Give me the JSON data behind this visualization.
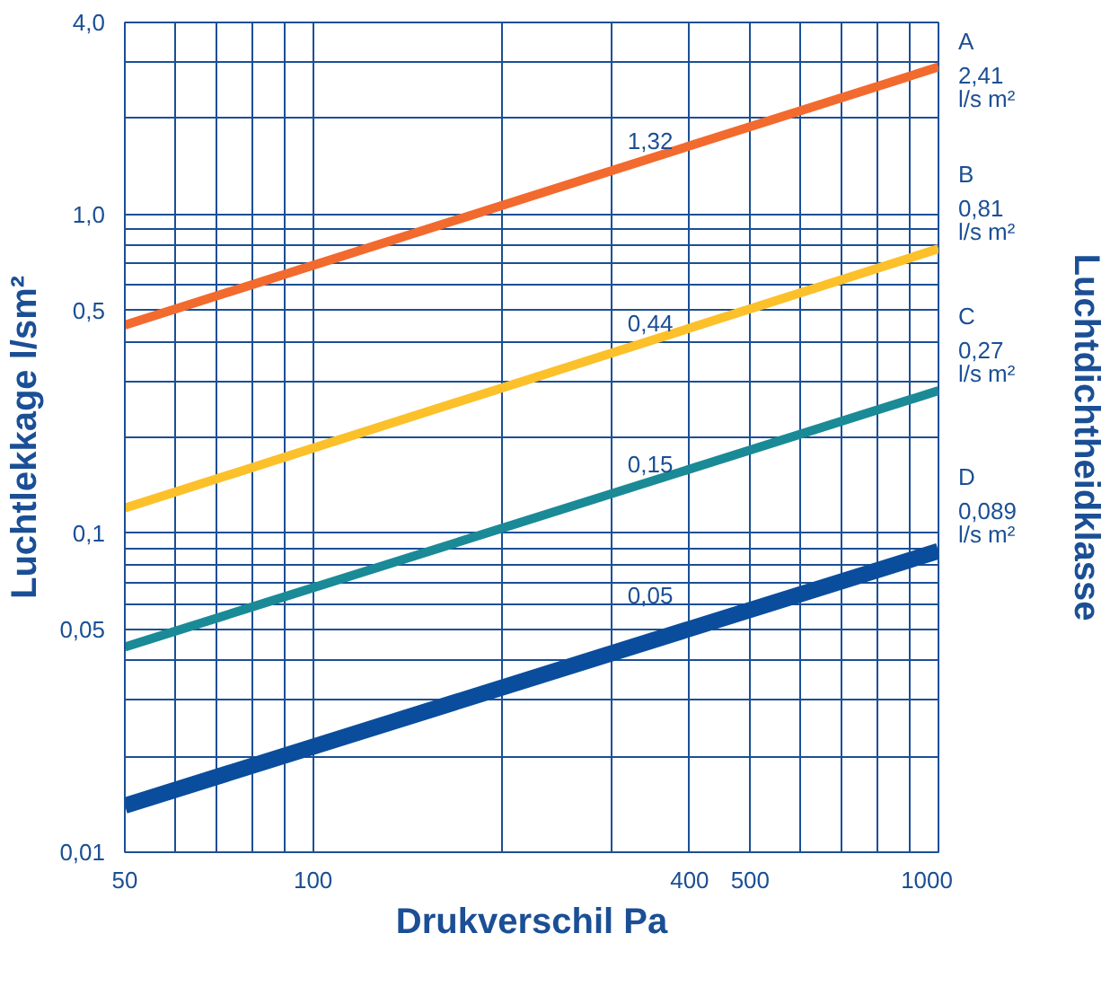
{
  "chart_data": {
    "type": "line",
    "xlabel": "Drukverschil Pa",
    "ylabel": "Luchtlekkage l/sm²",
    "y2label": "Luchtdichtheidklasse",
    "x": [
      50,
      1000
    ],
    "log": "xy",
    "grid": true,
    "xlim": [
      50,
      1000
    ],
    "xticks": [
      50,
      {
        "value": 60,
        "label": null
      },
      {
        "value": 70,
        "label": null
      },
      {
        "value": 80,
        "label": null
      },
      {
        "value": 90,
        "label": null
      },
      100,
      {
        "value": 200,
        "label": null
      },
      {
        "value": 300,
        "label": null
      },
      400,
      500,
      {
        "value": 600,
        "label": null
      },
      {
        "value": 700,
        "label": null
      },
      {
        "value": 800,
        "label": null
      },
      {
        "value": 900,
        "label": null
      },
      1000
    ],
    "ylim": [
      0.01,
      4
    ],
    "yticks": [
      {
        "value": 0.01,
        "label": "0,01"
      },
      {
        "value": 0.02,
        "label": null
      },
      {
        "value": 0.03,
        "label": null
      },
      {
        "value": 0.04,
        "label": null
      },
      {
        "value": 0.05,
        "label": "0,05"
      },
      {
        "value": 0.06,
        "label": null
      },
      {
        "value": 0.07,
        "label": null
      },
      {
        "value": 0.08,
        "label": null
      },
      {
        "value": 0.09,
        "label": null
      },
      {
        "value": 0.1,
        "label": "0,1"
      },
      {
        "value": 0.2,
        "label": null
      },
      {
        "value": 0.3,
        "label": null
      },
      {
        "value": 0.4,
        "label": null
      },
      {
        "value": 0.5,
        "label": "0,5"
      },
      {
        "value": 0.6,
        "label": null
      },
      {
        "value": 0.7,
        "label": null
      },
      {
        "value": 0.8,
        "label": null
      },
      {
        "value": 0.9,
        "label": null
      },
      {
        "value": 1,
        "label": "1,0"
      },
      {
        "value": 2,
        "label": null
      },
      {
        "value": 3,
        "label": null
      },
      {
        "value": 4,
        "label": "4,0"
      }
    ],
    "series": [
      {
        "name": "A",
        "color": "#f26a2e",
        "values": [
          0.45,
          2.9
        ]
      },
      {
        "name": "B",
        "color": "#fcc02a",
        "values": [
          0.12,
          0.78
        ]
      },
      {
        "name": "C",
        "color": "#1a8a96",
        "values": [
          0.044,
          0.28
        ]
      },
      {
        "name": "D",
        "color": "#0a4d9c",
        "values": [
          0.014,
          0.088
        ]
      }
    ],
    "annotations": [
      "1,32",
      "0,44",
      "0,15",
      "0,05",
      "2,41 l/s m²",
      "0,81 l/s m²",
      "0,27 l/s m²",
      "0,089 l/s m²"
    ]
  }
}
